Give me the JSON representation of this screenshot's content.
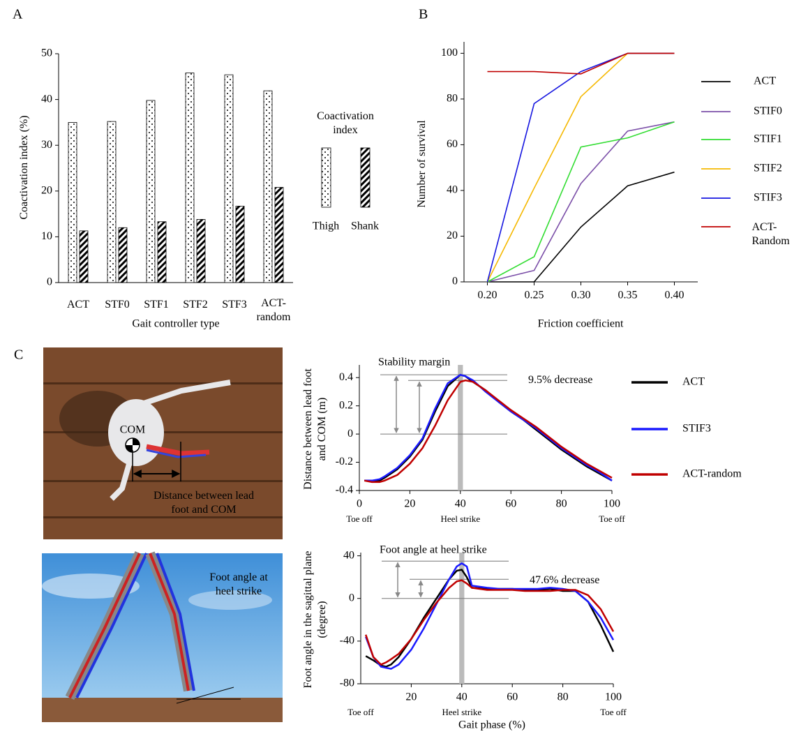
{
  "panel_labels": [
    "A",
    "B",
    "C"
  ],
  "image_texts": {
    "com": "COM",
    "distance": "Distance between lead foot and COM",
    "foot_angle": "Foot angle at heel strike"
  },
  "chart_data": [
    {
      "type": "bar",
      "y_label": "Coactivation index (%)",
      "x_label": "Gait controller type",
      "categories": [
        "ACT",
        "STF0",
        "STF1",
        "STF2",
        "STF3",
        "ACT-random"
      ],
      "series": [
        {
          "name": "Thigh",
          "fill": "dots",
          "values": [
            35,
            35.2,
            39.8,
            45.8,
            45.4,
            41.9
          ]
        },
        {
          "name": "Shank",
          "fill": "stripes",
          "values": [
            11.3,
            12,
            13.3,
            13.8,
            16.7,
            20.8
          ]
        }
      ],
      "legend_title": "Coactivation index",
      "ylim": [
        0,
        50
      ],
      "yticks": [
        0,
        10,
        20,
        30,
        40,
        50
      ]
    },
    {
      "type": "line",
      "y_label": "Number of survival",
      "x_label": "Friction coefficient",
      "x": [
        0.2,
        0.25,
        0.3,
        0.35,
        0.4
      ],
      "series": [
        {
          "name": "ACT",
          "color": "#000000",
          "values": [
            0,
            0,
            24,
            42,
            48
          ]
        },
        {
          "name": "STIF0",
          "color": "#7b4fa8",
          "values": [
            0,
            5,
            43,
            66,
            70
          ]
        },
        {
          "name": "STIF1",
          "color": "#33dd33",
          "values": [
            0,
            11,
            59,
            63,
            70
          ]
        },
        {
          "name": "STIF2",
          "color": "#f5b800",
          "values": [
            0,
            41,
            81,
            100,
            100
          ]
        },
        {
          "name": "STIF3",
          "color": "#1515e0",
          "values": [
            0,
            78,
            92,
            100,
            100
          ]
        },
        {
          "name": "ACT-Random",
          "color": "#c00000",
          "values": [
            92,
            92,
            91,
            100,
            100
          ]
        }
      ],
      "xlim": [
        0.175,
        0.425
      ],
      "xticks": [
        {
          "value": 0.2,
          "label": "0.20"
        },
        {
          "value": 0.25,
          "label": "0.25"
        },
        {
          "value": 0.3,
          "label": "0.30"
        },
        {
          "value": 0.35,
          "label": "0.35"
        },
        {
          "value": 0.4,
          "label": "0.40"
        }
      ],
      "ylim": [
        0,
        105
      ],
      "yticks": [
        0,
        20,
        40,
        60,
        80,
        100
      ],
      "legend": "right"
    },
    {
      "type": "line",
      "y_label": "Distance between lead foot and COM (m)",
      "x": [
        2,
        5,
        8,
        10,
        15,
        20,
        25,
        30,
        35,
        40,
        42,
        45,
        50,
        55,
        60,
        65,
        70,
        75,
        80,
        85,
        90,
        95,
        100
      ],
      "series": [
        {
          "name": "ACT",
          "color": "#000000",
          "values": [
            -0.33,
            -0.33,
            -0.33,
            -0.31,
            -0.25,
            -0.16,
            -0.04,
            0.16,
            0.34,
            0.42,
            0.41,
            0.37,
            0.31,
            0.23,
            0.16,
            0.1,
            0.03,
            -0.04,
            -0.11,
            -0.17,
            -0.23,
            -0.28,
            -0.33
          ]
        },
        {
          "name": "STIF3",
          "color": "#1a1aff",
          "values": [
            -0.33,
            -0.33,
            -0.32,
            -0.3,
            -0.24,
            -0.15,
            -0.03,
            0.18,
            0.36,
            0.42,
            0.41,
            0.38,
            0.3,
            0.23,
            0.16,
            0.1,
            0.04,
            -0.03,
            -0.1,
            -0.16,
            -0.22,
            -0.27,
            -0.33
          ]
        },
        {
          "name": "ACT-random",
          "color": "#c00000",
          "values": [
            -0.33,
            -0.34,
            -0.34,
            -0.33,
            -0.29,
            -0.21,
            -0.1,
            0.06,
            0.24,
            0.37,
            0.38,
            0.37,
            0.31,
            0.24,
            0.17,
            0.11,
            0.05,
            -0.02,
            -0.09,
            -0.15,
            -0.21,
            -0.26,
            -0.31
          ]
        }
      ],
      "xlim": [
        0,
        100
      ],
      "xticks": [
        0,
        20,
        40,
        60,
        80,
        100
      ],
      "ylim": [
        -0.4,
        0.49
      ],
      "yticks": [
        -0.4,
        -0.2,
        0,
        0.2,
        0.4
      ],
      "phase_labels": [
        {
          "value": 0,
          "label": "Toe off"
        },
        {
          "value": 40,
          "label": "Heel strike"
        },
        {
          "value": 100,
          "label": "Toe off"
        }
      ],
      "highlight_x": [
        39,
        41
      ],
      "reference_lines": [
        0.42,
        0.38,
        0
      ],
      "annotations": [
        "Stability margin",
        "9.5% decrease"
      ],
      "legend": "right"
    },
    {
      "type": "line",
      "y_label": "Foot angle in the sagittal plane (degree)",
      "x_label": "Gait phase (%)",
      "x": [
        2,
        5,
        8,
        10,
        12,
        15,
        20,
        25,
        30,
        35,
        38,
        40,
        42,
        44,
        50,
        55,
        60,
        65,
        70,
        75,
        80,
        85,
        90,
        95,
        100
      ],
      "series": [
        {
          "color": "#000000",
          "values": [
            -54,
            -58,
            -63,
            -64,
            -62,
            -55,
            -38,
            -18,
            0,
            18,
            26,
            27,
            20,
            10,
            9,
            9,
            9,
            8,
            8,
            9,
            7,
            7,
            -3,
            -25,
            -50
          ]
        },
        {
          "color": "#1a1aff",
          "values": [
            -36,
            -55,
            -64,
            -65,
            -66,
            -62,
            -48,
            -28,
            -5,
            18,
            30,
            33,
            30,
            12,
            10,
            9,
            9,
            9,
            9,
            10,
            9,
            7,
            -3,
            -18,
            -39
          ]
        },
        {
          "color": "#c00000",
          "values": [
            -34,
            -55,
            -62,
            -60,
            -57,
            -52,
            -38,
            -20,
            -4,
            10,
            16,
            17,
            14,
            10,
            8,
            8,
            8,
            7,
            7,
            7,
            8,
            8,
            3,
            -10,
            -31
          ]
        }
      ],
      "xlim": [
        0,
        100
      ],
      "xticks": [
        20,
        40,
        60,
        80,
        100
      ],
      "ylim": [
        -80,
        43
      ],
      "yticks": [
        -80,
        -40,
        0,
        40
      ],
      "phase_labels": [
        {
          "value": 0,
          "label": "Toe off"
        },
        {
          "value": 40,
          "label": "Heel strike"
        },
        {
          "value": 100,
          "label": "Toe off"
        }
      ],
      "highlight_x": [
        39,
        41
      ],
      "reference_lines": [
        35,
        18,
        0
      ],
      "annotations": [
        "Foot angle at heel strike",
        "47.6% decrease"
      ]
    }
  ]
}
